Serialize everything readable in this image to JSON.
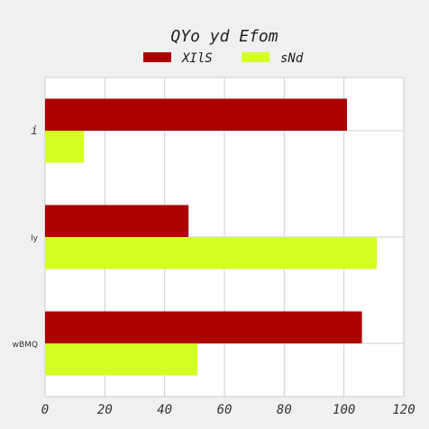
{
  "chart_data": {
    "type": "bar",
    "orientation": "horizontal",
    "title": "QYo yd Efom",
    "categories": [
      "i",
      "ly",
      "wBMQ"
    ],
    "series": [
      {
        "name": "XIlS",
        "values": [
          101,
          48,
          106
        ],
        "color": "#aa0000"
      },
      {
        "name": "sNd",
        "values": [
          13,
          111,
          51
        ],
        "color": "#d4ff22"
      }
    ],
    "xlim": [
      0,
      120
    ],
    "xticks": [
      "0",
      "20",
      "40",
      "60",
      "80",
      "100",
      "120"
    ],
    "grid": true,
    "legend": "top-center"
  }
}
